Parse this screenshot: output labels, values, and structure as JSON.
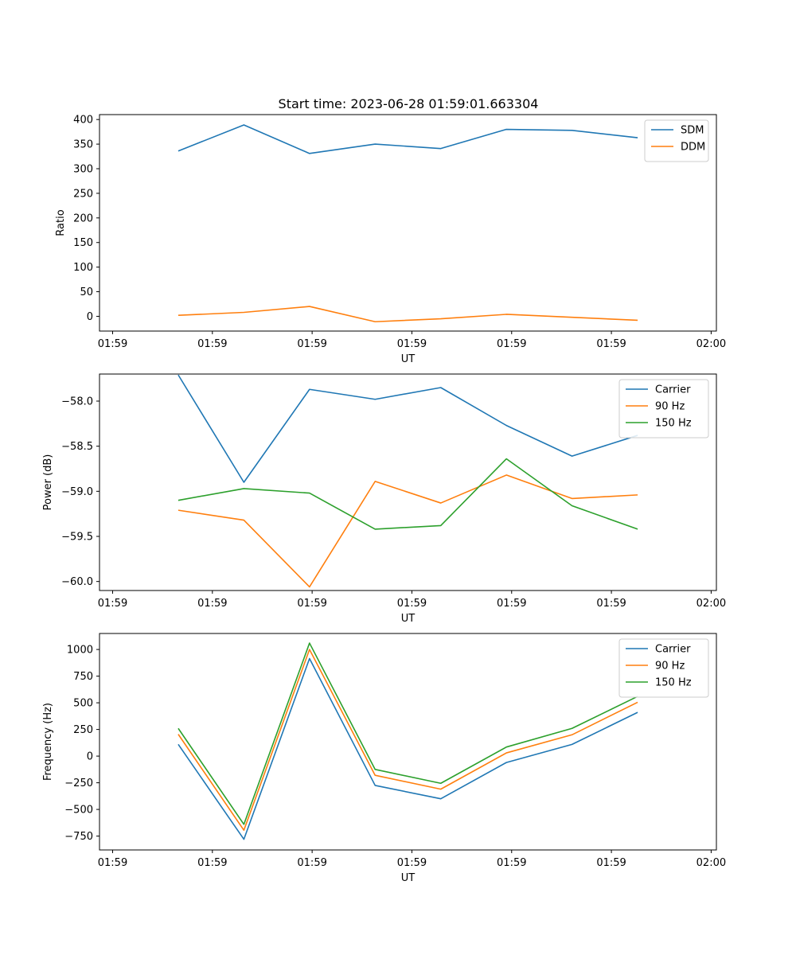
{
  "title": "Start time: 2023-06-28 01:59:01.663304",
  "colors": {
    "c0": "#1f77b4",
    "c1": "#ff7f0e",
    "c2": "#2ca02c"
  },
  "chart_data": [
    {
      "type": "line",
      "x": [
        0.5,
        1.0,
        1.5,
        2.0,
        2.5,
        3.0,
        3.5,
        4.0
      ],
      "xlim": [
        -0.1,
        4.6
      ],
      "xticks": [
        0,
        0.76,
        1.52,
        2.28,
        3.04,
        3.8,
        4.56
      ],
      "xtick_labels": [
        "01:59",
        "01:59",
        "01:59",
        "01:59",
        "01:59",
        "01:59",
        "02:00"
      ],
      "xlabel": "UT",
      "ylabel": "Ratio",
      "ylim": [
        -30,
        410
      ],
      "yticks": [
        0,
        50,
        100,
        150,
        200,
        250,
        300,
        350,
        400
      ],
      "ytick_labels": [
        "0",
        "50",
        "100",
        "150",
        "200",
        "250",
        "300",
        "350",
        "400"
      ],
      "legend_position": "top-right",
      "series": [
        {
          "name": "SDM",
          "color": "#1f77b4",
          "values": [
            336,
            389,
            331,
            350,
            341,
            380,
            378,
            363
          ]
        },
        {
          "name": "DDM",
          "color": "#ff7f0e",
          "values": [
            2,
            8,
            20,
            -11,
            -5,
            4,
            -2,
            -8
          ]
        }
      ]
    },
    {
      "type": "line",
      "x": [
        0.5,
        1.0,
        1.5,
        2.0,
        2.5,
        3.0,
        3.5,
        4.0
      ],
      "xlim": [
        -0.1,
        4.6
      ],
      "xticks": [
        0,
        0.76,
        1.52,
        2.28,
        3.04,
        3.8,
        4.56
      ],
      "xtick_labels": [
        "01:59",
        "01:59",
        "01:59",
        "01:59",
        "01:59",
        "01:59",
        "02:00"
      ],
      "xlabel": "UT",
      "ylabel": "Power (dB)",
      "ylim": [
        -60.1,
        -57.7
      ],
      "yticks": [
        -60.0,
        -59.5,
        -59.0,
        -58.5,
        -58.0
      ],
      "ytick_labels": [
        "−60.0",
        "−59.5",
        "−59.0",
        "−58.5",
        "−58.0"
      ],
      "legend_position": "top-right",
      "series": [
        {
          "name": "Carrier",
          "color": "#1f77b4",
          "values": [
            -57.71,
            -58.9,
            -57.87,
            -57.98,
            -57.85,
            -58.27,
            -58.61,
            -58.38
          ]
        },
        {
          "name": "90 Hz",
          "color": "#ff7f0e",
          "values": [
            -59.21,
            -59.32,
            -60.06,
            -58.89,
            -59.13,
            -58.82,
            -59.08,
            -59.04
          ]
        },
        {
          "name": "150 Hz",
          "color": "#2ca02c",
          "values": [
            -59.1,
            -58.97,
            -59.02,
            -59.42,
            -59.38,
            -58.64,
            -59.16,
            -59.42
          ]
        }
      ]
    },
    {
      "type": "line",
      "x": [
        0.5,
        1.0,
        1.5,
        2.0,
        2.5,
        3.0,
        3.5,
        4.0
      ],
      "xlim": [
        -0.1,
        4.6
      ],
      "xticks": [
        0,
        0.76,
        1.52,
        2.28,
        3.04,
        3.8,
        4.56
      ],
      "xtick_labels": [
        "01:59",
        "01:59",
        "01:59",
        "01:59",
        "01:59",
        "01:59",
        "02:00"
      ],
      "xlabel": "UT",
      "ylabel": "Frequency (Hz)",
      "ylim": [
        -880,
        1150
      ],
      "yticks": [
        -750,
        -500,
        -250,
        0,
        250,
        500,
        750,
        1000
      ],
      "ytick_labels": [
        "−750",
        "−500",
        "−250",
        "0",
        "250",
        "500",
        "750",
        "1000"
      ],
      "legend_position": "top-right",
      "series": [
        {
          "name": "Carrier",
          "color": "#1f77b4",
          "values": [
            110,
            -780,
            915,
            -275,
            -400,
            -60,
            110,
            410
          ]
        },
        {
          "name": "90 Hz",
          "color": "#ff7f0e",
          "values": [
            205,
            -695,
            1000,
            -180,
            -310,
            30,
            200,
            505
          ]
        },
        {
          "name": "150 Hz",
          "color": "#2ca02c",
          "values": [
            260,
            -640,
            1060,
            -125,
            -255,
            85,
            260,
            560
          ]
        }
      ]
    }
  ]
}
